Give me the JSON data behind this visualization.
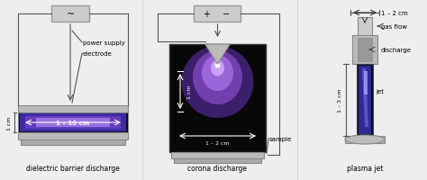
{
  "bg_color": "#eeeeee",
  "box_fill": "#cccccc",
  "box_stroke": "#999999",
  "gray_fill": "#bbbbbb",
  "gray_stroke": "#888888",
  "dark_fill": "#080808",
  "wire_color": "#555555",
  "plasma_blue": "#4433bb",
  "plasma_purple": "#7744cc",
  "plasma_bright": "#9966ee",
  "plasma_white": "#ccaaff",
  "jet_blue": "#3333aa",
  "jet_bright": "#6655cc",
  "corona_glow1": "#6633bb",
  "corona_glow2": "#9955dd",
  "corona_bright": "#bb88ff",
  "labels": {
    "dbd": "dielectric barrier discharge",
    "corona": "corona discharge",
    "plasma": "plasma jet",
    "power_supply": "power supply",
    "electrode": "electrode",
    "sample": "sample",
    "gas_flow": "gas flow",
    "discharge": "discharge",
    "jet": "jet",
    "dbd_width": "1 – 10 cm",
    "dbd_height": "1 cm",
    "corona_height": "1 cm",
    "corona_width": "1 – 2 cm",
    "plasma_width": "1 – 2 cm",
    "plasma_height": "1 – 3 cm"
  },
  "tilde": "~",
  "plus": "+",
  "minus": "−"
}
